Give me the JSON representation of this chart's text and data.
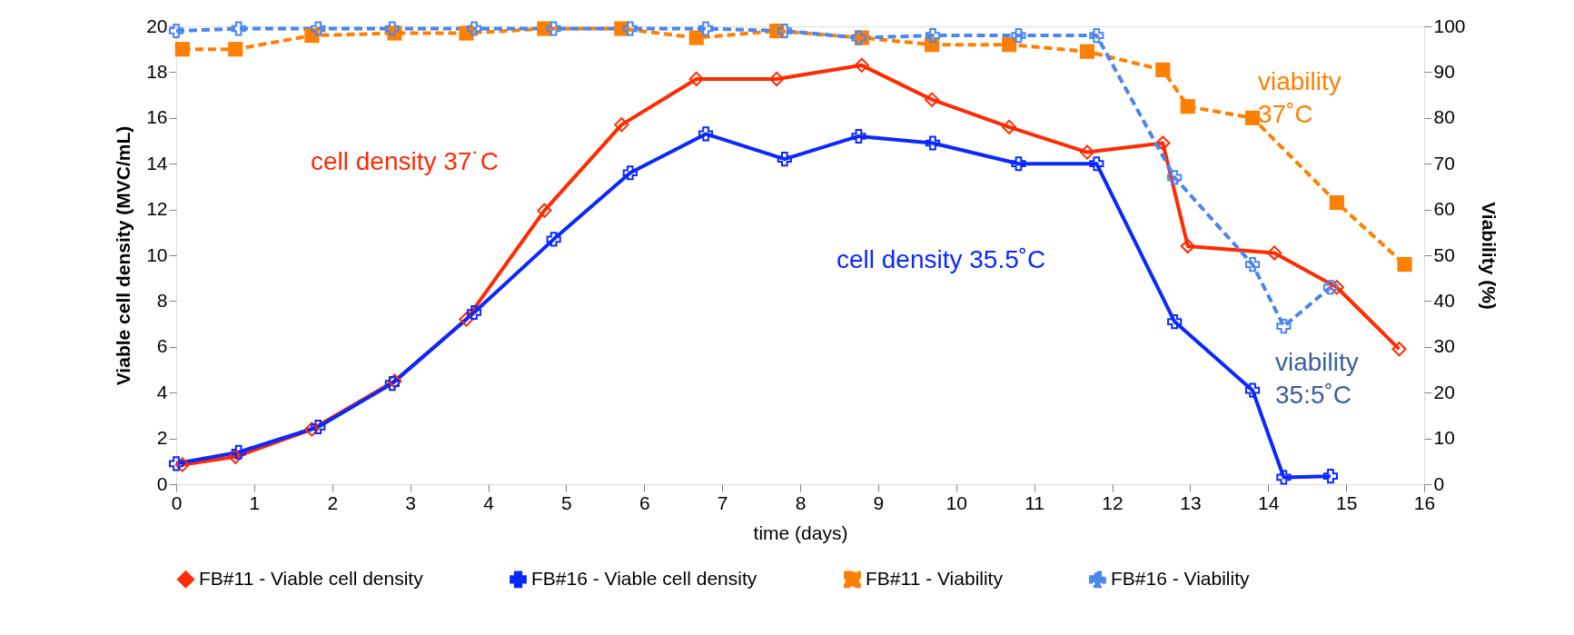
{
  "chart_data": {
    "type": "line",
    "xlabel": "time (days)",
    "ylabel": "Viable cell density (MVC/mL)",
    "y2label": "Viability (%)",
    "xlim": [
      0,
      16
    ],
    "xticks": [
      0,
      1,
      2,
      3,
      4,
      5,
      6,
      7,
      8,
      9,
      10,
      11,
      12,
      13,
      14,
      15,
      16
    ],
    "ylim": [
      0,
      20
    ],
    "yticks": [
      0,
      2,
      4,
      6,
      8,
      10,
      12,
      14,
      16,
      18,
      20
    ],
    "y2lim": [
      0,
      100
    ],
    "y2ticks": [
      0,
      10,
      20,
      30,
      40,
      50,
      60,
      70,
      80,
      90,
      100
    ],
    "grid": false,
    "legend": "bottom",
    "series": [
      {
        "name": "FB#11 - Viable cell density",
        "color": "#ff2a00",
        "marker": "diamond",
        "line_style": "solid",
        "x": [
          0.08,
          0.76,
          1.74,
          2.8,
          3.72,
          4.72,
          5.71,
          6.67,
          7.7,
          8.79,
          9.69,
          10.68,
          11.68,
          12.65,
          12.97,
          14.08,
          14.88,
          15.68
        ],
        "values": [
          0.85,
          1.2,
          2.4,
          4.5,
          7.2,
          11.95,
          15.7,
          17.7,
          17.7,
          18.3,
          16.8,
          15.6,
          14.5,
          14.9,
          10.4,
          10.1,
          8.6,
          5.9
        ]
      },
      {
        "name": "FB#16 - Viable cell density",
        "color": "#0a28ff",
        "marker": "cross",
        "line_style": "solid",
        "x": [
          0,
          0.8,
          1.82,
          2.77,
          3.82,
          4.84,
          5.82,
          6.79,
          7.8,
          8.75,
          9.7,
          10.8,
          11.8,
          12.8,
          13.8,
          14.2,
          14.8
        ],
        "values": [
          0.9,
          1.4,
          2.5,
          4.4,
          7.5,
          10.7,
          13.6,
          15.3,
          14.2,
          15.2,
          14.9,
          14.0,
          14.0,
          7.1,
          4.1,
          0.3,
          0.35
        ]
      },
      {
        "name": "FB#11 - Viability",
        "color": "#ff7f00",
        "marker": "square",
        "line_style": "dashed",
        "axis": "y2",
        "x": [
          0.08,
          0.76,
          1.74,
          2.8,
          3.72,
          4.72,
          5.71,
          6.67,
          7.7,
          8.79,
          9.69,
          10.68,
          11.68,
          12.65,
          12.97,
          13.8,
          14.88,
          15.75
        ],
        "values": [
          95,
          95,
          98,
          98.5,
          98.5,
          99.5,
          99.5,
          97.5,
          99,
          97.5,
          96,
          96,
          94.5,
          90.5,
          82.5,
          80,
          61.5,
          48
        ]
      },
      {
        "name": "FB#16 - Viability",
        "color": "#4a86f0",
        "marker": "cross",
        "line_style": "dashed",
        "axis": "y2",
        "x": [
          0,
          0.8,
          1.82,
          2.77,
          3.82,
          4.84,
          5.82,
          6.79,
          7.8,
          8.75,
          9.7,
          10.8,
          11.8,
          12.8,
          13.8,
          14.2,
          14.8
        ],
        "values": [
          99,
          99.5,
          99.5,
          99.5,
          99.5,
          99.5,
          99.5,
          99.5,
          99,
          97.5,
          98,
          98,
          98,
          67,
          48,
          34.5,
          43
        ]
      }
    ],
    "annotations": [
      "cell density 37˙C",
      "cell density 35.5˚C",
      "viability\n37˚C",
      "viability\n35:5˚C"
    ]
  }
}
